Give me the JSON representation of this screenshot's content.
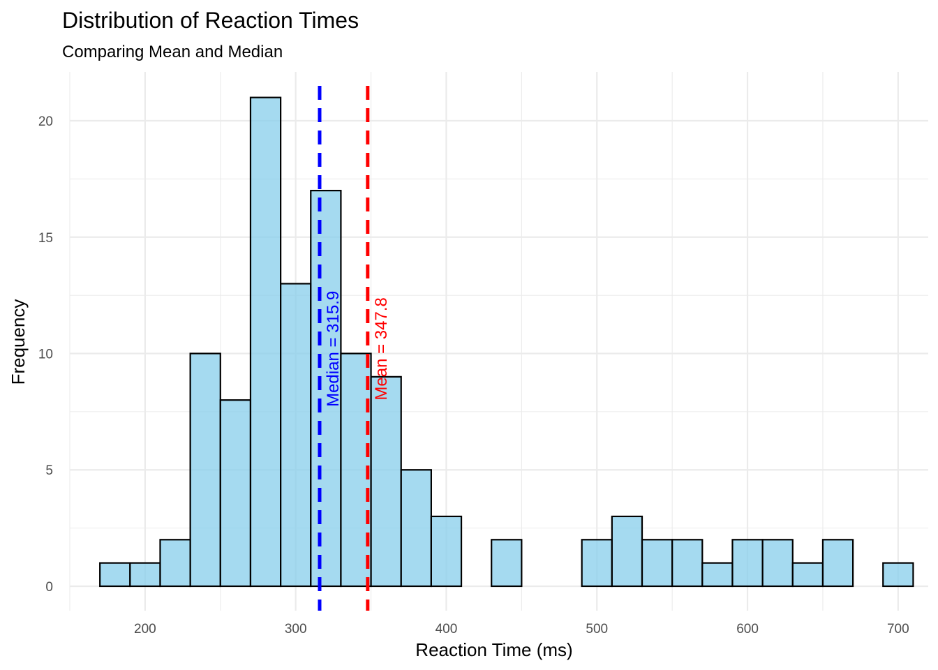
{
  "chart_data": {
    "type": "bar",
    "title": "Distribution of Reaction Times",
    "subtitle": "Comparing Mean and Median",
    "xlabel": "Reaction Time (ms)",
    "ylabel": "Frequency",
    "xlim": [
      150,
      720
    ],
    "ylim": [
      -1.05,
      22.1
    ],
    "x_ticks": [
      200,
      300,
      400,
      500,
      600,
      700
    ],
    "y_ticks": [
      0,
      5,
      10,
      15,
      20
    ],
    "grid": true,
    "bin_width": 20,
    "bins": [
      {
        "x": 180,
        "count": 1
      },
      {
        "x": 200,
        "count": 1
      },
      {
        "x": 220,
        "count": 2
      },
      {
        "x": 240,
        "count": 10
      },
      {
        "x": 260,
        "count": 8
      },
      {
        "x": 280,
        "count": 21
      },
      {
        "x": 300,
        "count": 13
      },
      {
        "x": 320,
        "count": 17
      },
      {
        "x": 340,
        "count": 10
      },
      {
        "x": 360,
        "count": 9
      },
      {
        "x": 380,
        "count": 5
      },
      {
        "x": 400,
        "count": 3
      },
      {
        "x": 420,
        "count": 0
      },
      {
        "x": 440,
        "count": 2
      },
      {
        "x": 460,
        "count": 0
      },
      {
        "x": 480,
        "count": 0
      },
      {
        "x": 500,
        "count": 2
      },
      {
        "x": 520,
        "count": 3
      },
      {
        "x": 540,
        "count": 2
      },
      {
        "x": 560,
        "count": 2
      },
      {
        "x": 580,
        "count": 1
      },
      {
        "x": 600,
        "count": 2
      },
      {
        "x": 620,
        "count": 2
      },
      {
        "x": 640,
        "count": 1
      },
      {
        "x": 660,
        "count": 2
      },
      {
        "x": 680,
        "count": 0
      },
      {
        "x": 700,
        "count": 1
      }
    ],
    "bar_fill": "#87ceeb",
    "bar_outline": "#000000",
    "reference_lines": [
      {
        "name": "median",
        "value": 315.9,
        "label": "Median = 315.9",
        "color": "#0000ff"
      },
      {
        "name": "mean",
        "value": 347.8,
        "label": "Mean = 347.8",
        "color": "#ff0000"
      }
    ]
  }
}
